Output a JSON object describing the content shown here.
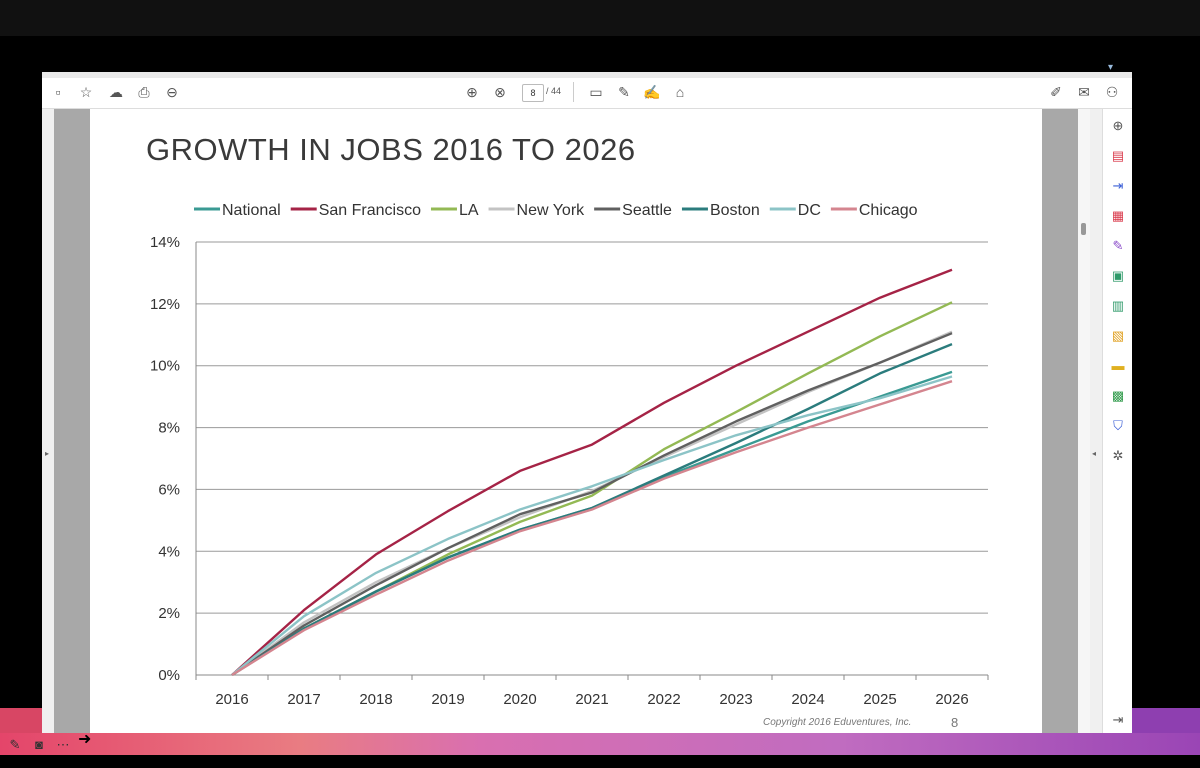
{
  "toolbar": {
    "icons": [
      "save-icon",
      "bookmark-star-icon",
      "upload-cloud-icon",
      "print-icon",
      "zoom-out-icon"
    ],
    "page_current": "8",
    "page_total": "/ 44",
    "center_icons": [
      "page-up-icon",
      "page-down-icon"
    ],
    "tool_icons": [
      "comment-icon",
      "highlight-pen-icon",
      "sign-icon",
      "stamp-icon"
    ],
    "right_icons": [
      "fill-sign-icon",
      "email-icon",
      "add-user-icon"
    ]
  },
  "side_panel": {
    "icons": [
      "zoom-in-icon",
      "create-pdf-icon",
      "export-pdf-icon",
      "organize-pages-icon",
      "edit-pdf-icon",
      "combine-files-icon",
      "compress-pdf-icon",
      "scan-icon",
      "comment-icon",
      "print-production-icon",
      "protect-icon",
      "more-tools-icon",
      "expand-panel-icon"
    ]
  },
  "slide": {
    "title": "GROWTH IN JOBS 2016 TO 2026",
    "copyright": "Copyright 2016 Eduventures, Inc.",
    "page_number": "8"
  },
  "chart_data": {
    "type": "line",
    "title": "GROWTH IN JOBS 2016 TO 2026",
    "xlabel": "",
    "ylabel": "",
    "x": [
      "2016",
      "2017",
      "2018",
      "2019",
      "2020",
      "2021",
      "2022",
      "2023",
      "2024",
      "2025",
      "2026"
    ],
    "ylim": [
      0,
      14
    ],
    "yticks": [
      "0%",
      "2%",
      "4%",
      "6%",
      "8%",
      "10%",
      "12%",
      "14%"
    ],
    "grid": true,
    "legend_position": "top",
    "series": [
      {
        "name": "National",
        "color": "#3a9a93",
        "values": [
          0,
          1.5,
          2.7,
          3.8,
          4.7,
          5.4,
          6.4,
          7.3,
          8.2,
          9.0,
          9.8
        ]
      },
      {
        "name": "San Francisco",
        "color": "#a52346",
        "values": [
          0,
          2.1,
          3.9,
          5.3,
          6.6,
          7.45,
          8.8,
          10.0,
          11.1,
          12.2,
          13.1
        ]
      },
      {
        "name": "LA",
        "color": "#93b954",
        "values": [
          0,
          1.5,
          2.7,
          3.9,
          4.95,
          5.8,
          7.3,
          8.5,
          9.75,
          10.95,
          12.05
        ]
      },
      {
        "name": "New York",
        "color": "#c3c3c3",
        "values": [
          0,
          1.7,
          3.0,
          4.1,
          5.1,
          5.95,
          7.05,
          8.1,
          9.15,
          10.1,
          11.1
        ]
      },
      {
        "name": "Seattle",
        "color": "#606060",
        "values": [
          0,
          1.6,
          2.9,
          4.1,
          5.2,
          5.9,
          7.1,
          8.2,
          9.2,
          10.1,
          11.05
        ]
      },
      {
        "name": "Boston",
        "color": "#2b7c7d",
        "values": [
          0,
          1.5,
          2.7,
          3.8,
          4.7,
          5.4,
          6.45,
          7.5,
          8.6,
          9.75,
          10.7
        ]
      },
      {
        "name": "DC",
        "color": "#8cc4c7",
        "values": [
          0,
          1.9,
          3.3,
          4.4,
          5.35,
          6.1,
          6.95,
          7.75,
          8.4,
          8.95,
          9.65
        ]
      },
      {
        "name": "Chicago",
        "color": "#d4858f",
        "values": [
          0,
          1.45,
          2.6,
          3.7,
          4.65,
          5.35,
          6.35,
          7.2,
          8.0,
          8.75,
          9.5
        ]
      }
    ]
  }
}
